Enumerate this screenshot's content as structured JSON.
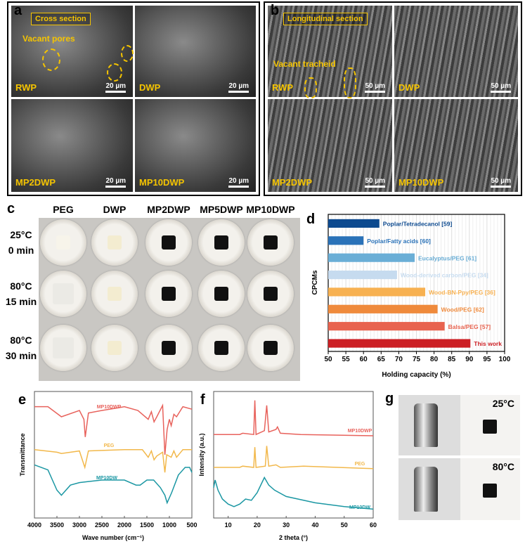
{
  "panel_a": {
    "letter": "a",
    "title": "Cross section",
    "annotation": "Vacant pores",
    "images": [
      {
        "label": "RWP",
        "scale": "20 µm"
      },
      {
        "label": "DWP",
        "scale": "20 µm"
      },
      {
        "label": "MP2DWP",
        "scale": "20 µm"
      },
      {
        "label": "MP10DWP",
        "scale": "20 µm"
      }
    ]
  },
  "panel_b": {
    "letter": "b",
    "title": "Longitudinal section",
    "annotation": "Vacant tracheid",
    "images": [
      {
        "label": "RWP",
        "scale": "50 µm"
      },
      {
        "label": "DWP",
        "scale": "50 µm"
      },
      {
        "label": "MP2DWP",
        "scale": "50 µm"
      },
      {
        "label": "MP10DWP",
        "scale": "50 µm"
      }
    ]
  },
  "panel_c": {
    "letter": "c",
    "columns": [
      "PEG",
      "DWP",
      "MP2DWP",
      "MP5DWP",
      "MP10DWP"
    ],
    "rows": [
      {
        "temp": "25°C",
        "time": "0 min"
      },
      {
        "temp": "80°C",
        "time": "15 min"
      },
      {
        "temp": "80°C",
        "time": "30 min"
      }
    ]
  },
  "panel_g": {
    "letter": "g",
    "rows": [
      {
        "temp": "25°C"
      },
      {
        "temp": "80°C"
      }
    ]
  },
  "chart_data": [
    {
      "id": "d",
      "letter": "d",
      "type": "bar",
      "orientation": "horizontal",
      "xlabel": "Holding capacity (%)",
      "ylabel": "CPCMs",
      "xlim": [
        50,
        100
      ],
      "xticks": [
        50,
        55,
        60,
        65,
        70,
        75,
        80,
        85,
        90,
        95,
        100
      ],
      "grid": true,
      "categories": [
        "Poplar/Tetradecanol [59]",
        "Poplar/Fatty acids [60]",
        "Eucalyptus/PEG [61]",
        "Wood-derived carbon/PEG [34]",
        "Wood-BN-Ppy/PEG [36]",
        "Wood/PEG [62]",
        "Balsa/PEG [57]",
        "This work"
      ],
      "values": [
        64.5,
        60,
        74.5,
        69.5,
        77.5,
        81,
        83,
        90.3
      ],
      "colors": [
        "#0d4a8f",
        "#2a72b8",
        "#6aaed6",
        "#c6dbef",
        "#f7b151",
        "#ef8a3c",
        "#e8634f",
        "#cc1f24"
      ]
    },
    {
      "id": "e",
      "letter": "e",
      "type": "line",
      "xlabel": "Wave number (cm⁻¹)",
      "ylabel": "Transmittance",
      "xlim": [
        4000,
        500
      ],
      "xticks": [
        4000,
        3500,
        3000,
        2500,
        2000,
        1500,
        1000,
        500
      ],
      "series": [
        {
          "name": "MP10DWP",
          "color": "#e8625c",
          "points": [
            [
              4000,
              88
            ],
            [
              3700,
              88
            ],
            [
              3400,
              80
            ],
            [
              3000,
              85
            ],
            [
              2900,
              78
            ],
            [
              2870,
              64
            ],
            [
              2800,
              83
            ],
            [
              2500,
              85
            ],
            [
              2150,
              87
            ],
            [
              2000,
              88
            ],
            [
              1700,
              85
            ],
            [
              1470,
              78
            ],
            [
              1400,
              84
            ],
            [
              1340,
              76
            ],
            [
              1280,
              80
            ],
            [
              1150,
              89
            ],
            [
              1100,
              50
            ],
            [
              1050,
              70
            ],
            [
              1000,
              78
            ],
            [
              960,
              73
            ],
            [
              900,
              82
            ],
            [
              840,
              80
            ],
            [
              700,
              88
            ],
            [
              500,
              86
            ]
          ]
        },
        {
          "name": "PEG",
          "color": "#f2b84b",
          "points": [
            [
              4000,
              54
            ],
            [
              3500,
              52
            ],
            [
              3400,
              51
            ],
            [
              3000,
              53
            ],
            [
              2880,
              40
            ],
            [
              2800,
              53
            ],
            [
              2000,
              54
            ],
            [
              1600,
              54
            ],
            [
              1470,
              48
            ],
            [
              1400,
              53
            ],
            [
              1340,
              46
            ],
            [
              1280,
              49
            ],
            [
              1150,
              52
            ],
            [
              1100,
              36
            ],
            [
              1060,
              50
            ],
            [
              960,
              48
            ],
            [
              900,
              53
            ],
            [
              840,
              48
            ],
            [
              700,
              54
            ],
            [
              500,
              54
            ]
          ]
        },
        {
          "name": "MP10DW",
          "color": "#1b97a3",
          "points": [
            [
              4000,
              42
            ],
            [
              3700,
              38
            ],
            [
              3500,
              22
            ],
            [
              3400,
              18
            ],
            [
              3200,
              26
            ],
            [
              3000,
              28
            ],
            [
              2500,
              30
            ],
            [
              2000,
              30
            ],
            [
              1740,
              26
            ],
            [
              1650,
              26
            ],
            [
              1500,
              30
            ],
            [
              1350,
              30
            ],
            [
              1200,
              24
            ],
            [
              1100,
              18
            ],
            [
              1050,
              12
            ],
            [
              950,
              20
            ],
            [
              800,
              34
            ],
            [
              650,
              40
            ],
            [
              550,
              40
            ],
            [
              500,
              36
            ]
          ]
        }
      ]
    },
    {
      "id": "f",
      "letter": "f",
      "type": "line",
      "xlabel": "2 theta (°)",
      "ylabel": "Intensity (a.u.)",
      "xlim": [
        5,
        60
      ],
      "xticks": [
        10,
        20,
        30,
        40,
        50,
        60
      ],
      "series": [
        {
          "name": "MP10DWP",
          "color": "#e8625c",
          "points": [
            [
              5,
              66
            ],
            [
              14,
              66
            ],
            [
              15,
              67
            ],
            [
              18.8,
              66
            ],
            [
              19.2,
              93
            ],
            [
              19.6,
              66
            ],
            [
              22.5,
              69
            ],
            [
              23.3,
              89
            ],
            [
              24,
              68
            ],
            [
              26.5,
              70
            ],
            [
              27,
              72
            ],
            [
              28,
              67
            ],
            [
              35,
              66
            ],
            [
              60,
              65
            ]
          ]
        },
        {
          "name": "PEG",
          "color": "#f2b84b",
          "points": [
            [
              5,
              40
            ],
            [
              14,
              40
            ],
            [
              15,
              41
            ],
            [
              18.8,
              40
            ],
            [
              19.2,
              56
            ],
            [
              19.6,
              40
            ],
            [
              22.8,
              41
            ],
            [
              23.3,
              57
            ],
            [
              24,
              41
            ],
            [
              26.5,
              42
            ],
            [
              28,
              40
            ],
            [
              36,
              41
            ],
            [
              60,
              39
            ]
          ]
        },
        {
          "name": "MP10DW",
          "color": "#1b97a3",
          "points": [
            [
              5,
              24
            ],
            [
              5.5,
              30
            ],
            [
              6.5,
              22
            ],
            [
              8,
              15
            ],
            [
              10,
              11
            ],
            [
              12,
              9
            ],
            [
              14,
              11
            ],
            [
              16,
              15
            ],
            [
              18,
              14
            ],
            [
              20,
              20
            ],
            [
              22.5,
              32
            ],
            [
              24,
              26
            ],
            [
              26,
              22
            ],
            [
              30,
              17
            ],
            [
              40,
              12
            ],
            [
              50,
              9
            ],
            [
              60,
              7
            ]
          ]
        }
      ]
    }
  ]
}
